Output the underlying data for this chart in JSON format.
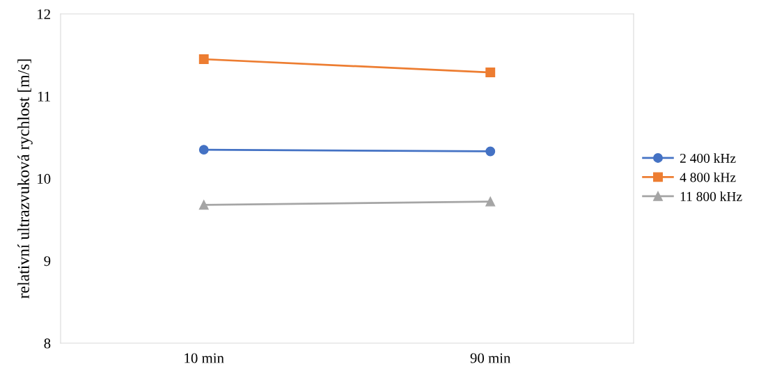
{
  "chart_data": {
    "type": "line",
    "ylabel": "relativní ultrazvuková rychlost [m/s]",
    "categories": [
      "10 min",
      "90 min"
    ],
    "series": [
      {
        "name": "2 400 kHz",
        "color": "#4472c4",
        "marker": "circle",
        "values": [
          10.35,
          10.33
        ]
      },
      {
        "name": "4 800 kHz",
        "color": "#ed7d31",
        "marker": "square",
        "values": [
          11.45,
          11.29
        ]
      },
      {
        "name": "11 800 kHz",
        "color": "#a5a5a5",
        "marker": "triangle",
        "values": [
          9.68,
          9.72
        ]
      }
    ],
    "ylim": [
      8,
      12
    ],
    "yticks": [
      8,
      9,
      10,
      11,
      12
    ],
    "grid": false,
    "legend": "right",
    "line_style": "solid"
  }
}
